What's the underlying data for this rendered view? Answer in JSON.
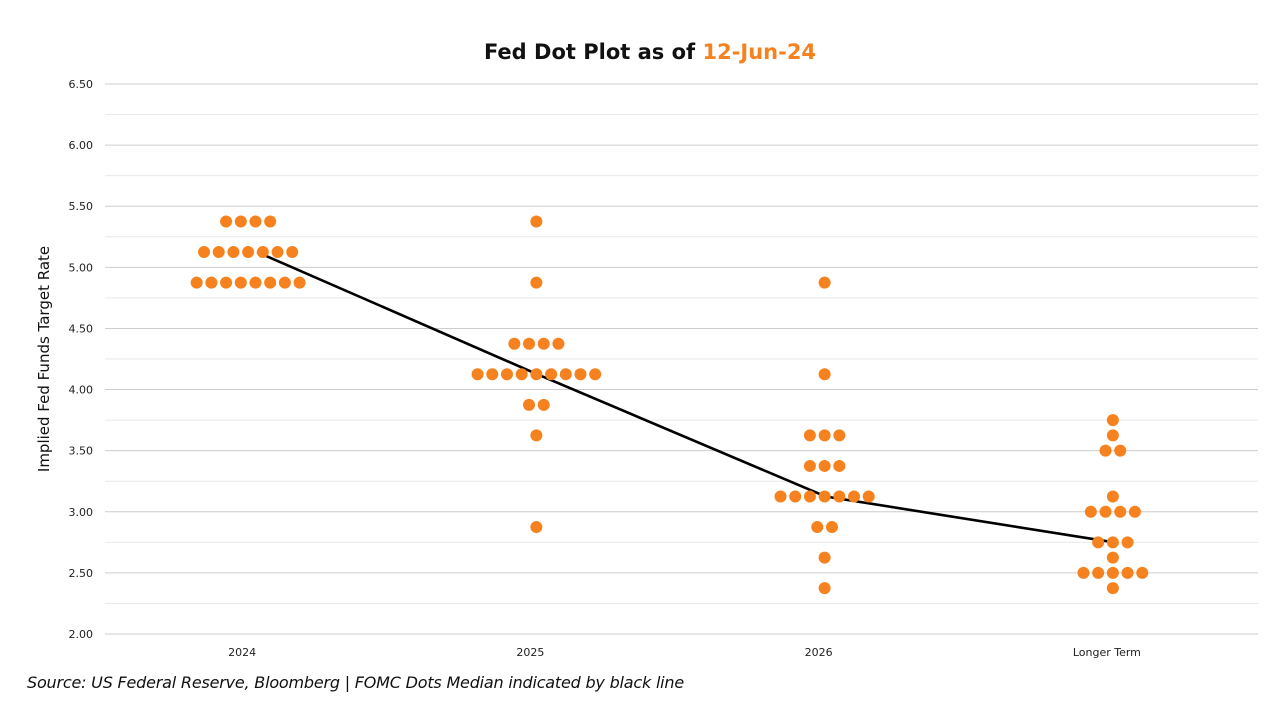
{
  "chart_data": {
    "type": "scatter",
    "title": "Fed Dot Plot as of ",
    "title_date": "12-Jun-24",
    "xlabel": "",
    "ylabel": "Implied Fed Funds Target Rate",
    "ylim": [
      2.0,
      6.5
    ],
    "yticks": [
      "2.00",
      "2.50",
      "3.00",
      "3.50",
      "4.00",
      "4.50",
      "5.00",
      "5.50",
      "6.00",
      "6.50"
    ],
    "ytick_values": [
      2.0,
      2.5,
      3.0,
      3.5,
      4.0,
      4.5,
      5.0,
      5.5,
      6.0,
      6.5
    ],
    "minor_grid_step": 0.25,
    "grid": true,
    "categories": [
      "2024",
      "2025",
      "2026",
      "Longer Term"
    ],
    "dot_color": "#F5821F",
    "median_line_color": "#000000",
    "dots": [
      {
        "category": "2024",
        "levels": [
          {
            "rate": 5.375,
            "count": 4
          },
          {
            "rate": 5.125,
            "count": 7
          },
          {
            "rate": 4.875,
            "count": 8
          }
        ]
      },
      {
        "category": "2025",
        "levels": [
          {
            "rate": 5.375,
            "count": 1
          },
          {
            "rate": 4.875,
            "count": 1
          },
          {
            "rate": 4.375,
            "count": 4
          },
          {
            "rate": 4.125,
            "count": 9
          },
          {
            "rate": 3.875,
            "count": 2
          },
          {
            "rate": 3.625,
            "count": 1
          },
          {
            "rate": 2.875,
            "count": 1
          }
        ]
      },
      {
        "category": "2026",
        "levels": [
          {
            "rate": 4.875,
            "count": 1
          },
          {
            "rate": 4.125,
            "count": 1
          },
          {
            "rate": 3.625,
            "count": 3
          },
          {
            "rate": 3.375,
            "count": 3
          },
          {
            "rate": 3.125,
            "count": 7
          },
          {
            "rate": 2.875,
            "count": 2
          },
          {
            "rate": 2.625,
            "count": 1
          },
          {
            "rate": 2.375,
            "count": 1
          }
        ]
      },
      {
        "category": "Longer Term",
        "levels": [
          {
            "rate": 3.75,
            "count": 1
          },
          {
            "rate": 3.625,
            "count": 1
          },
          {
            "rate": 3.5,
            "count": 2
          },
          {
            "rate": 3.125,
            "count": 1
          },
          {
            "rate": 3.0,
            "count": 4
          },
          {
            "rate": 2.75,
            "count": 3
          },
          {
            "rate": 2.625,
            "count": 1
          },
          {
            "rate": 2.5,
            "count": 5
          },
          {
            "rate": 2.375,
            "count": 1
          }
        ]
      }
    ],
    "median": {
      "name": "FOMC Dots Median",
      "values": [
        5.125,
        4.125,
        3.125,
        2.75
      ]
    }
  },
  "footer": {
    "source": "Source: US Federal Reserve, Bloomberg | FOMC Dots Median indicated by black line"
  }
}
